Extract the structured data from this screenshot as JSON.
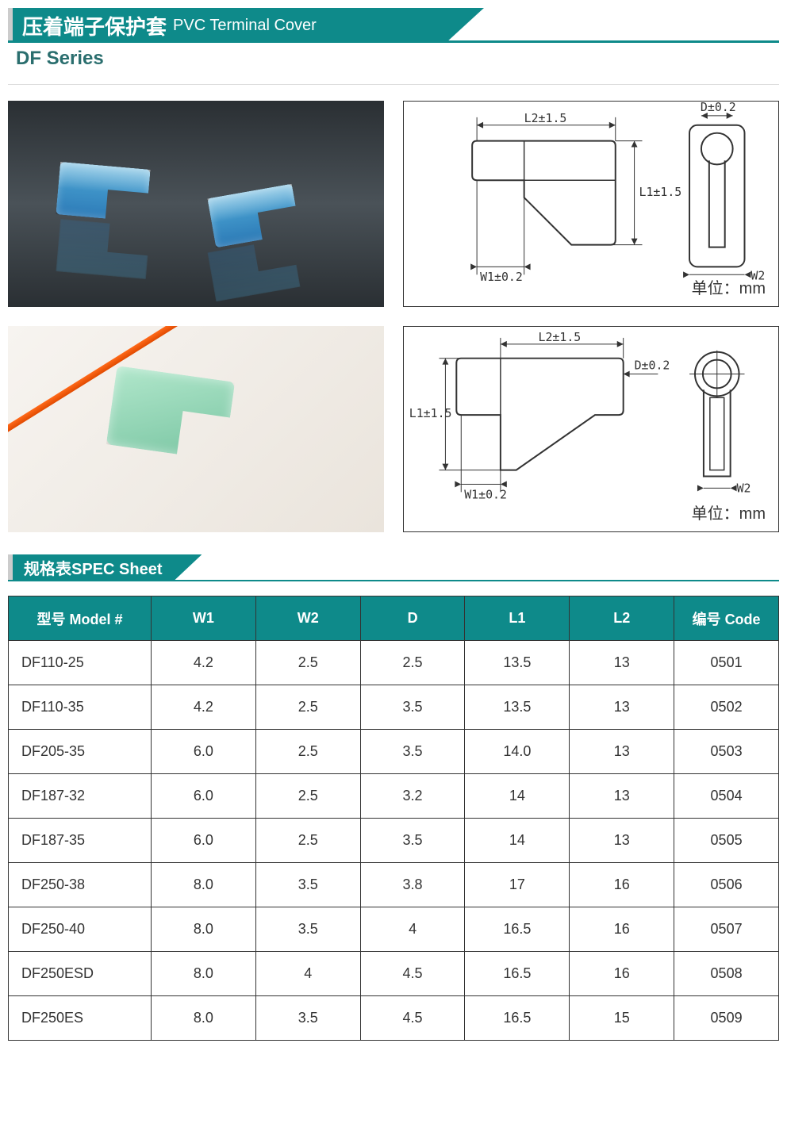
{
  "colors": {
    "teal": "#0e8a8a",
    "border": "#333333",
    "bg": "#ffffff",
    "text": "#333333",
    "subheader_text": "#2a6e6e"
  },
  "header": {
    "title_cn": "压着端子保护套",
    "title_en": "PVC Terminal Cover",
    "series": "DF Series"
  },
  "drawings": {
    "unit_label": "单位：mm",
    "labels": {
      "L2": "L2±1.5",
      "L1": "L1±1.5",
      "W1": "W1±0.2",
      "W2": "W2",
      "D": "D±0.2"
    }
  },
  "spec_section": {
    "title": "规格表SPEC Sheet"
  },
  "spec_table": {
    "columns": [
      "型号  Model #",
      "W1",
      "W2",
      "D",
      "L1",
      "L2",
      "编号 Code"
    ],
    "rows": [
      [
        "DF110-25",
        "4.2",
        "2.5",
        "2.5",
        "13.5",
        "13",
        "0501"
      ],
      [
        "DF110-35",
        "4.2",
        "2.5",
        "3.5",
        "13.5",
        "13",
        "0502"
      ],
      [
        "DF205-35",
        "6.0",
        "2.5",
        "3.5",
        "14.0",
        "13",
        "0503"
      ],
      [
        "DF187-32",
        "6.0",
        "2.5",
        "3.2",
        "14",
        "13",
        "0504"
      ],
      [
        "DF187-35",
        "6.0",
        "2.5",
        "3.5",
        "14",
        "13",
        "0505"
      ],
      [
        "DF250-38",
        "8.0",
        "3.5",
        "3.8",
        "17",
        "16",
        "0506"
      ],
      [
        "DF250-40",
        "8.0",
        "3.5",
        "4",
        "16.5",
        "16",
        "0507"
      ],
      [
        "DF250ESD",
        "8.0",
        "4",
        "4.5",
        "16.5",
        "16",
        "0508"
      ],
      [
        "DF250ES",
        "8.0",
        "3.5",
        "4.5",
        "16.5",
        "15",
        "0509"
      ]
    ]
  }
}
